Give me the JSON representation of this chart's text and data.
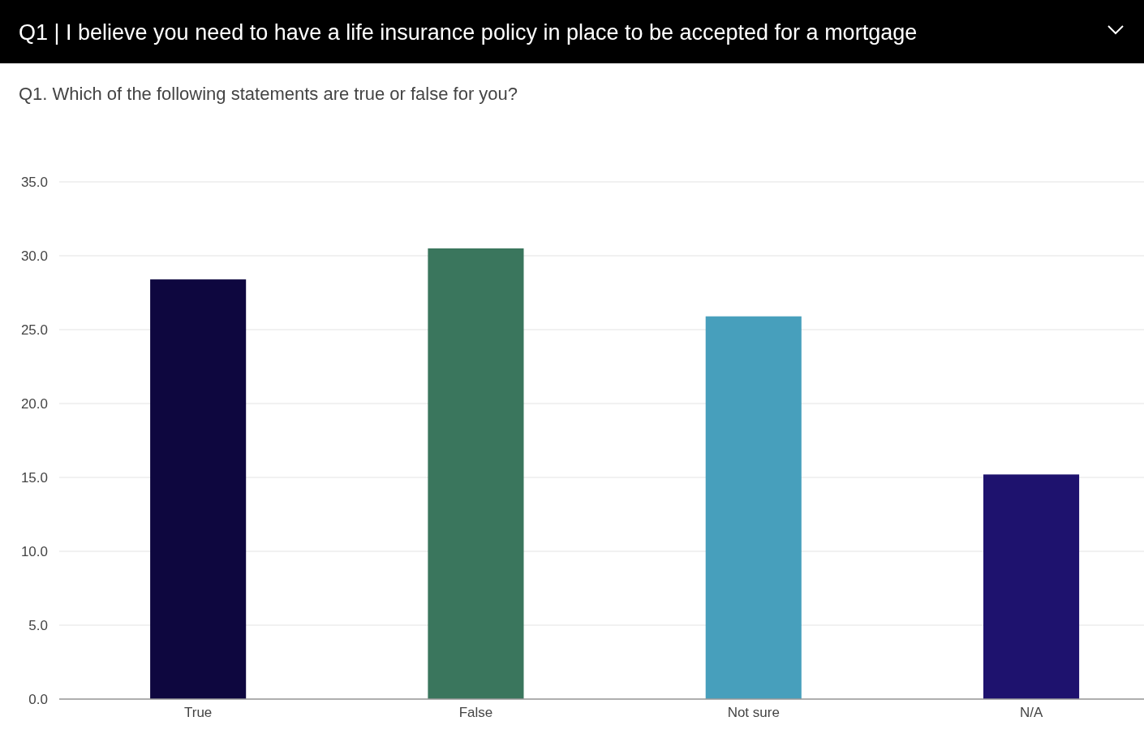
{
  "chart_data": {
    "type": "bar",
    "title": "Q1 | I believe you need to have a life insurance policy in place to be accepted for a mortgage",
    "subtitle": "Q1. Which of the following statements are true or false for you?",
    "categories": [
      "True",
      "False",
      "Not sure",
      "N/A"
    ],
    "values": [
      28.4,
      30.5,
      25.9,
      15.2
    ],
    "colors": [
      "#0e073f",
      "#3a765d",
      "#479fbc",
      "#1e126e"
    ],
    "ylim": [
      0,
      35
    ],
    "yticks": [
      {
        "value": 0,
        "label": "0.0"
      },
      {
        "value": 5,
        "label": "5.0"
      },
      {
        "value": 10,
        "label": "10.0"
      },
      {
        "value": 15,
        "label": "15.0"
      },
      {
        "value": 20,
        "label": "20.0"
      },
      {
        "value": 25,
        "label": "25.0"
      },
      {
        "value": 30,
        "label": "30.0"
      },
      {
        "value": 35,
        "label": "35.0"
      }
    ],
    "grid": "y"
  }
}
